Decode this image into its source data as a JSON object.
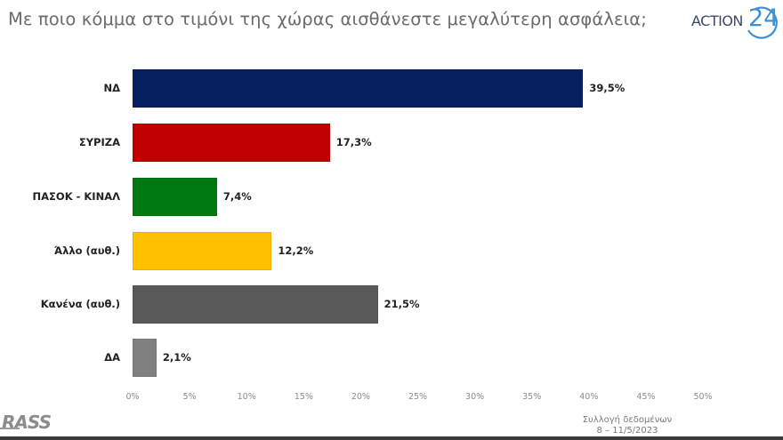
{
  "header": {
    "title": "Με ποιο κόμμα στο τιμόνι της χώρας αισθάνεστε μεγαλύτερη ασφάλεια;",
    "logo_text": "ACTION",
    "logo_number": "24"
  },
  "footer": {
    "source_logo": "RASS",
    "note_line1": "Συλλογή δεδομένων",
    "note_line2": "8 – 11/5/2023"
  },
  "chart_data": {
    "type": "bar",
    "orientation": "horizontal",
    "title": "Με ποιο κόμμα στο τιμόνι της χώρας αισθάνεστε μεγαλύτερη ασφάλεια;",
    "categories": [
      "ΝΔ",
      "ΣΥΡΙΖΑ",
      "ΠΑΣΟΚ - ΚΙΝΑΛ",
      "Άλλο (αυθ.)",
      "Κανένα (αυθ.)",
      "ΔΑ"
    ],
    "values": [
      39.5,
      17.3,
      7.4,
      12.2,
      21.5,
      2.1
    ],
    "value_labels": [
      "39,5%",
      "17,3%",
      "7,4%",
      "12,2%",
      "21,5%",
      "2,1%"
    ],
    "colors": [
      "#06205f",
      "#c00000",
      "#007a10",
      "#ffc000",
      "#595959",
      "#808080"
    ],
    "xlabel": "",
    "ylabel": "",
    "xlim": [
      0,
      50
    ],
    "x_ticks": [
      "0%",
      "5%",
      "10%",
      "15%",
      "20%",
      "25%",
      "30%",
      "35%",
      "40%",
      "45%",
      "50%"
    ],
    "grid": false,
    "legend": "none"
  }
}
